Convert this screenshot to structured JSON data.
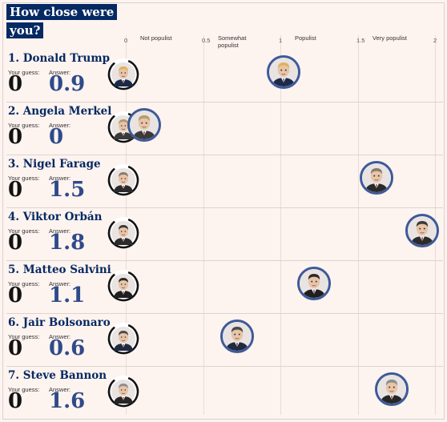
{
  "heading": "How close were you?",
  "scale": {
    "ticks": [
      {
        "value": 0,
        "text": "0"
      },
      {
        "value": 0.5,
        "text": "0.5"
      },
      {
        "value": 1,
        "text": "1"
      },
      {
        "value": 1.5,
        "text": "1.5"
      },
      {
        "value": 2,
        "text": "2"
      }
    ],
    "categories": [
      {
        "value": 0.25,
        "text": "Not populist"
      },
      {
        "value": 0.75,
        "text": "Somewhat populist"
      },
      {
        "value": 1.25,
        "text": "Populist"
      },
      {
        "value": 1.75,
        "text": "Very populist"
      }
    ]
  },
  "labels": {
    "your_guess": "Your guess:",
    "answer": "Answer:"
  },
  "people": [
    {
      "rank_name": "1. Donald Trump",
      "guess": "0",
      "answer": "0.9",
      "value": 0.9,
      "hair": "#e0b25a",
      "suit": "#1b2a4a"
    },
    {
      "rank_name": "2. Angela Merkel",
      "guess": "0",
      "answer": "0",
      "value": 0,
      "hair": "#b79a6e",
      "suit": "#3a3a3a"
    },
    {
      "rank_name": "3. Nigel Farage",
      "guess": "0",
      "answer": "1.5",
      "value": 1.5,
      "hair": "#8a7a6a",
      "suit": "#2a2a2a"
    },
    {
      "rank_name": "4. Viktor Orbán",
      "guess": "0",
      "answer": "1.8",
      "value": 1.8,
      "hair": "#3a3a3a",
      "suit": "#2b2b2b"
    },
    {
      "rank_name": "5. Matteo Salvini",
      "guess": "0",
      "answer": "1.1",
      "value": 1.1,
      "hair": "#2a2a2a",
      "suit": "#1f1f1f"
    },
    {
      "rank_name": "6. Jair Bolsonaro",
      "guess": "0",
      "answer": "0.6",
      "value": 0.6,
      "hair": "#4a4a4a",
      "suit": "#1f2a40"
    },
    {
      "rank_name": "7. Steve Bannon",
      "guess": "0",
      "answer": "1.6",
      "value": 1.6,
      "hair": "#8e8e8e",
      "suit": "#262626"
    }
  ],
  "colors": {
    "accent": "#052962",
    "answer_text": "#2f4a8a",
    "marker_ring": "#3d5a99"
  }
}
